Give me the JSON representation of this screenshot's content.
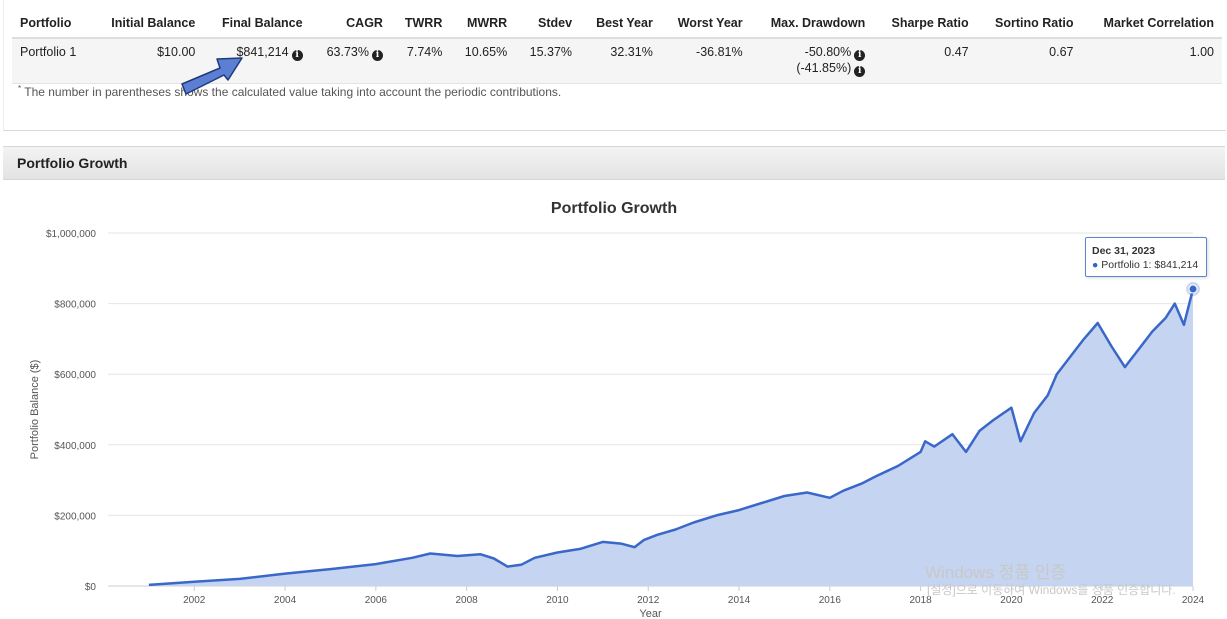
{
  "stats_table": {
    "headers": [
      "Portfolio",
      "Initial Balance",
      "Final Balance",
      "CAGR",
      "TWRR",
      "MWRR",
      "Stdev",
      "Best Year",
      "Worst Year",
      "Max. Drawdown",
      "Sharpe Ratio",
      "Sortino Ratio",
      "Market Correlation"
    ],
    "row": {
      "portfolio": "Portfolio 1",
      "initial_balance": "$10.00",
      "final_balance": "$841,214",
      "cagr": "63.73%",
      "twrr": "7.74%",
      "mwrr": "10.65%",
      "stdev": "15.37%",
      "best_year": "32.31%",
      "worst_year": "-36.81%",
      "max_drawdown": "-50.80%",
      "max_drawdown_contrib": "(-41.85%)",
      "sharpe": "0.47",
      "sortino": "0.67",
      "market_correlation": "1.00"
    },
    "footnote_mark": "*",
    "footnote": "The number in parentheses shows the calculated value taking into account the periodic contributions."
  },
  "info_icon_glyph": "i",
  "section": {
    "title": "Portfolio Growth"
  },
  "chart_data": {
    "type": "area",
    "title": "Portfolio Growth",
    "xlabel": "Year",
    "ylabel": "Portfolio Balance ($)",
    "ylim": [
      0,
      1000000
    ],
    "yticks": [
      "$0",
      "$200,000",
      "$400,000",
      "$600,000",
      "$800,000",
      "$1,000,000"
    ],
    "xticks": [
      "2002",
      "2004",
      "2006",
      "2008",
      "2010",
      "2012",
      "2014",
      "2016",
      "2018",
      "2020",
      "2022",
      "2024"
    ],
    "grid": true,
    "colors": {
      "line": "#3a68c8",
      "fill": "#c5d4f0"
    },
    "series": [
      {
        "name": "Portfolio 1",
        "x": [
          2001.0,
          2002.0,
          2003.0,
          2004.0,
          2005.0,
          2006.0,
          2006.8,
          2007.2,
          2007.8,
          2008.3,
          2008.6,
          2008.9,
          2009.2,
          2009.5,
          2010.0,
          2010.5,
          2011.0,
          2011.4,
          2011.7,
          2011.9,
          2012.2,
          2012.6,
          2013.0,
          2013.5,
          2014.0,
          2014.5,
          2015.0,
          2015.5,
          2016.0,
          2016.3,
          2016.7,
          2017.0,
          2017.5,
          2018.0,
          2018.1,
          2018.3,
          2018.7,
          2019.0,
          2019.3,
          2019.6,
          2020.0,
          2020.2,
          2020.5,
          2020.8,
          2021.0,
          2021.3,
          2021.6,
          2021.9,
          2022.2,
          2022.5,
          2022.8,
          2023.1,
          2023.4,
          2023.6,
          2023.8,
          2024.0
        ],
        "y": [
          3000,
          12000,
          20000,
          35000,
          48000,
          62000,
          80000,
          92000,
          85000,
          90000,
          78000,
          55000,
          60000,
          80000,
          95000,
          105000,
          125000,
          120000,
          110000,
          130000,
          145000,
          160000,
          180000,
          200000,
          215000,
          235000,
          255000,
          265000,
          250000,
          270000,
          290000,
          310000,
          340000,
          380000,
          410000,
          395000,
          430000,
          380000,
          440000,
          470000,
          505000,
          410000,
          490000,
          540000,
          600000,
          650000,
          700000,
          745000,
          680000,
          620000,
          670000,
          720000,
          760000,
          800000,
          740000,
          841214
        ]
      }
    ]
  },
  "tooltip": {
    "date": "Dec 31, 2023",
    "series": "Portfolio 1",
    "value": "$841,214"
  },
  "watermark": {
    "line1": "Windows 정품 인증",
    "line2": "[설정]으로 이동하여 Windows를 정품 인증합니다."
  }
}
